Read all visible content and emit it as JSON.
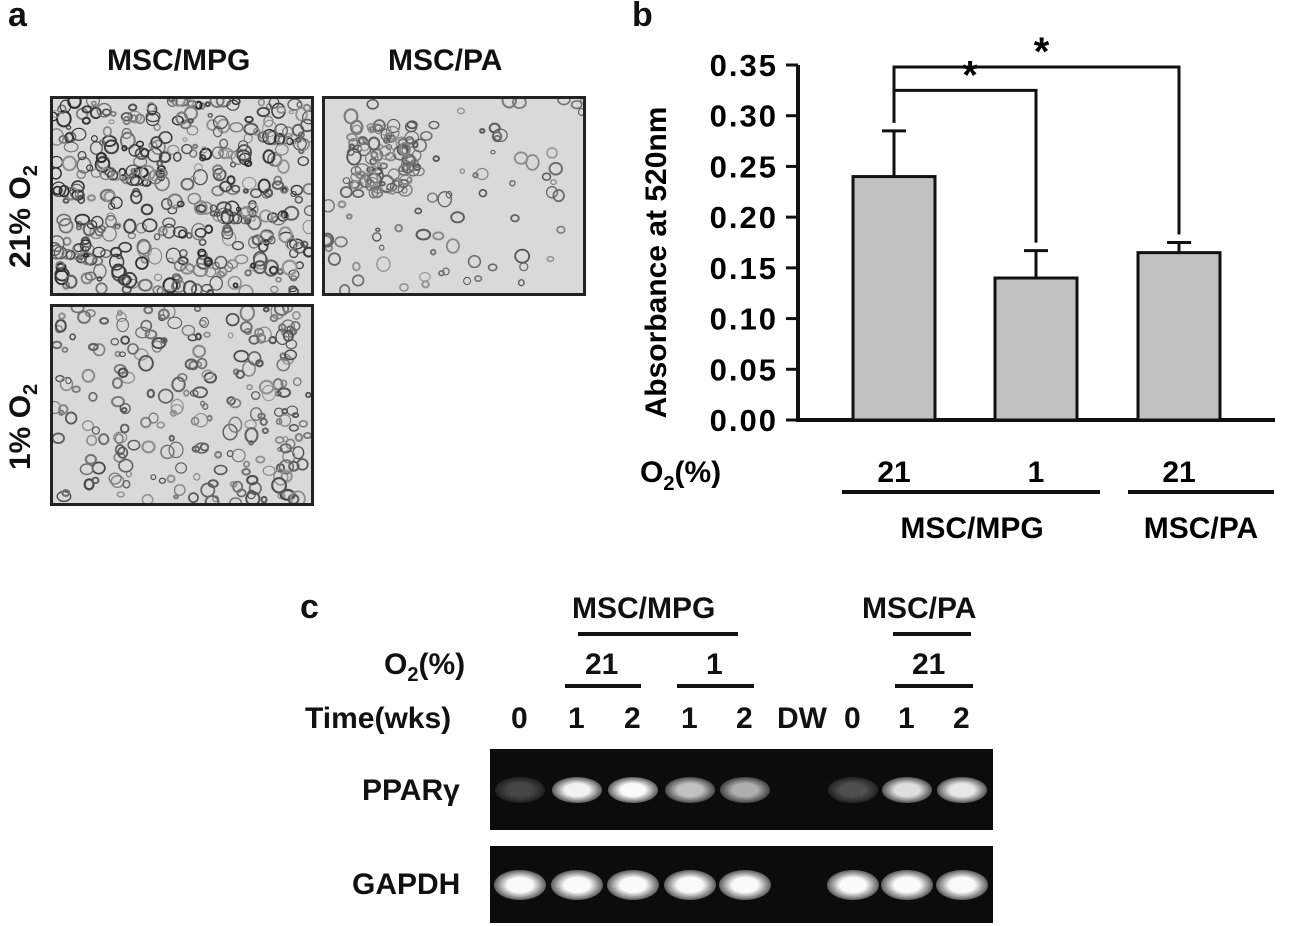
{
  "panel_a": {
    "label": "a",
    "col_headers": [
      "MSC/MPG",
      "MSC/PA"
    ],
    "row_labels": [
      {
        "main": "21% O",
        "sub": "2"
      },
      {
        "main": "1% O",
        "sub": "2"
      }
    ]
  },
  "panel_b": {
    "label": "b",
    "ylabel": "Absorbance at 520nm",
    "xrow_label_main": "O",
    "xrow_label_sub": "2",
    "xrow_label_tail": "(%)",
    "group_labels": [
      "MSC/MPG",
      "MSC/PA"
    ],
    "sig_marks": [
      "*",
      "*"
    ]
  },
  "chart_data": {
    "type": "bar",
    "categories": [
      "21",
      "1",
      "21"
    ],
    "values": [
      0.24,
      0.14,
      0.165
    ],
    "errors": [
      0.045,
      0.027,
      0.01
    ],
    "ylim": [
      0,
      0.35
    ],
    "yticks": [
      "0.00",
      "0.05",
      "0.10",
      "0.15",
      "0.20",
      "0.25",
      "0.30",
      "0.35"
    ],
    "ylabel": "Absorbance at 520nm",
    "bar_color": "#c0c0c0"
  },
  "panel_c": {
    "label": "c",
    "group_labels": [
      "MSC/MPG",
      "MSC/PA"
    ],
    "o2_label_main": "O",
    "o2_label_sub": "2",
    "o2_label_tail": "(%)",
    "o2_values": [
      "21",
      "1",
      "21"
    ],
    "time_label": "Time(wks)",
    "lanes": [
      "0",
      "1",
      "2",
      "1",
      "2",
      "DW",
      "0",
      "1",
      "2"
    ],
    "genes": [
      "PPARγ",
      "GAPDH"
    ],
    "pparg_intensity": [
      0.05,
      0.95,
      1.0,
      0.7,
      0.6,
      0.0,
      0.1,
      0.85,
      0.9
    ],
    "gapdh_intensity": [
      1,
      1,
      1,
      1,
      1,
      0,
      1,
      1,
      1
    ]
  }
}
